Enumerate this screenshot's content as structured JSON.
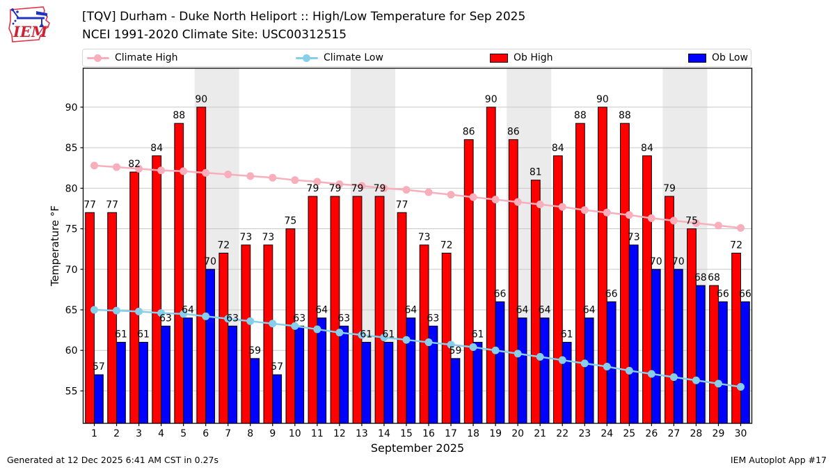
{
  "header": {
    "title": "[TQV] Durham - Duke North Heliport :: High/Low Temperature for Sep 2025",
    "subtitle": "NCEI 1991-2020 Climate Site: USC00312515",
    "logo_text": "IEM"
  },
  "legend": [
    {
      "label": "Climate High",
      "type": "line",
      "color": "#f9aebc"
    },
    {
      "label": "Climate Low",
      "type": "line",
      "color": "#87ceeb"
    },
    {
      "label": "Ob High",
      "type": "patch",
      "color": "#ff0000"
    },
    {
      "label": "Ob Low",
      "type": "patch",
      "color": "#0000ff"
    }
  ],
  "footer": {
    "left": "Generated at 12 Dec 2025 6:41 AM CST in 0.27s",
    "right": "IEM Autoplot App #17"
  },
  "chart_data": {
    "type": "bar",
    "title": "[TQV] Durham - Duke North Heliport :: High/Low Temperature for Sep 2025",
    "xlabel": "September 2025",
    "ylabel": "Temperature °F",
    "x": [
      1,
      2,
      3,
      4,
      5,
      6,
      7,
      8,
      9,
      10,
      11,
      12,
      13,
      14,
      15,
      16,
      17,
      18,
      19,
      20,
      21,
      22,
      23,
      24,
      25,
      26,
      27,
      28,
      29,
      30
    ],
    "xticks": [
      1,
      2,
      3,
      4,
      5,
      6,
      7,
      8,
      9,
      10,
      11,
      12,
      13,
      14,
      15,
      16,
      17,
      18,
      19,
      20,
      21,
      22,
      23,
      24,
      25,
      26,
      27,
      28,
      29,
      30
    ],
    "yticks": [
      55,
      60,
      65,
      70,
      75,
      80,
      85,
      90
    ],
    "ylim": [
      51,
      94.8
    ],
    "grid": true,
    "weekend_bands": [
      [
        5.5,
        7.5
      ],
      [
        12.5,
        14.5
      ],
      [
        19.5,
        21.5
      ],
      [
        26.5,
        28.5
      ]
    ],
    "colors": {
      "weekend_band": "#ebebeb",
      "grid": "#c8c8c8",
      "frame": "#000000"
    },
    "series": [
      {
        "name": "Ob High",
        "type": "bar",
        "color": "#ff0000",
        "values": [
          77,
          77,
          82,
          84,
          88,
          90,
          72,
          73,
          73,
          75,
          79,
          79,
          79,
          79,
          77,
          73,
          72,
          86,
          90,
          86,
          81,
          84,
          88,
          90,
          88,
          84,
          79,
          75,
          68,
          72
        ]
      },
      {
        "name": "Ob Low",
        "type": "bar",
        "color": "#0000ff",
        "values": [
          57,
          61,
          61,
          63,
          64,
          70,
          63,
          59,
          57,
          63,
          64,
          63,
          61,
          61,
          64,
          63,
          59,
          61,
          66,
          64,
          64,
          61,
          64,
          66,
          73,
          70,
          70,
          68,
          66,
          66
        ]
      },
      {
        "name": "Climate High",
        "type": "line",
        "color": "#f9aebc",
        "values": [
          82.8,
          82.6,
          82.4,
          82.2,
          82.1,
          81.9,
          81.7,
          81.5,
          81.3,
          81.0,
          80.8,
          80.5,
          80.3,
          80.0,
          79.8,
          79.5,
          79.2,
          78.9,
          78.6,
          78.3,
          78.0,
          77.7,
          77.3,
          77.0,
          76.7,
          76.3,
          76.0,
          75.7,
          75.4,
          75.1
        ]
      },
      {
        "name": "Climate Low",
        "type": "line",
        "color": "#87ceeb",
        "values": [
          65.0,
          64.9,
          64.8,
          64.6,
          64.5,
          64.2,
          63.9,
          63.6,
          63.3,
          63.0,
          62.6,
          62.2,
          61.9,
          61.6,
          61.3,
          61.0,
          60.7,
          60.4,
          60.0,
          59.6,
          59.2,
          58.8,
          58.4,
          58.0,
          57.5,
          57.1,
          56.7,
          56.3,
          55.9,
          55.5
        ]
      }
    ]
  }
}
